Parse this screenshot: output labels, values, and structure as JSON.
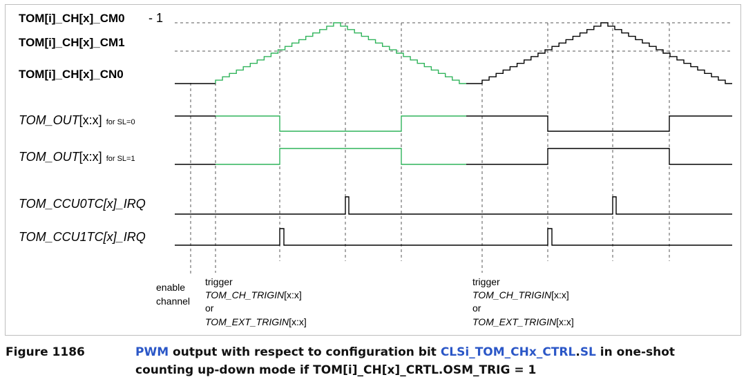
{
  "signals": {
    "cm0": "TOM[i]_CH[x]_CM0",
    "cm0_suffix": "- 1",
    "cm1": "TOM[i]_CH[x]_CM1",
    "cn0": "TOM[i]_CH[x]_CN0",
    "out_sl0": {
      "italic": "TOM_OUT",
      "plain": "[x:x]",
      "small": "for SL=0"
    },
    "out_sl1": {
      "italic": "TOM_OUT",
      "plain": "[x:x]",
      "small": "for SL=1"
    },
    "ccu0": "TOM_CCU0TC[x]_IRQ",
    "ccu1": "TOM_CCU1TC[x]_IRQ"
  },
  "notes": {
    "enable_line1": "enable",
    "enable_line2": "channel",
    "trigger_1": {
      "word": "trigger",
      "ch_italic": "TOM_CH_TRIGIN",
      "ch_plain": "[x:x]",
      "or": "or",
      "ext_italic": "TOM_EXT_TRIGIN",
      "ext_plain": "[x:x]"
    },
    "trigger_2": {
      "word": "trigger",
      "ch_italic": "TOM_CH_TRIGIN",
      "ch_plain": "[x:x]",
      "or": "or",
      "ext_italic": "TOM_EXT_TRIGIN",
      "ext_plain": "[x:x]"
    }
  },
  "caption": {
    "label": "Figure 1186",
    "part1": "PWM",
    "part2": " output with respect to configuration bit ",
    "part3": "CLSi_TOM_CHx_CTRL",
    "part4": ".",
    "part5": "SL",
    "part6": " in one-shot counting up-down mode if TOM[i]_CH[x]_CRTL.OSM_TRIG = 1"
  },
  "colors": {
    "active_green": "#2fb35a",
    "line_black": "#000000",
    "link_blue": "#2b57c7"
  }
}
